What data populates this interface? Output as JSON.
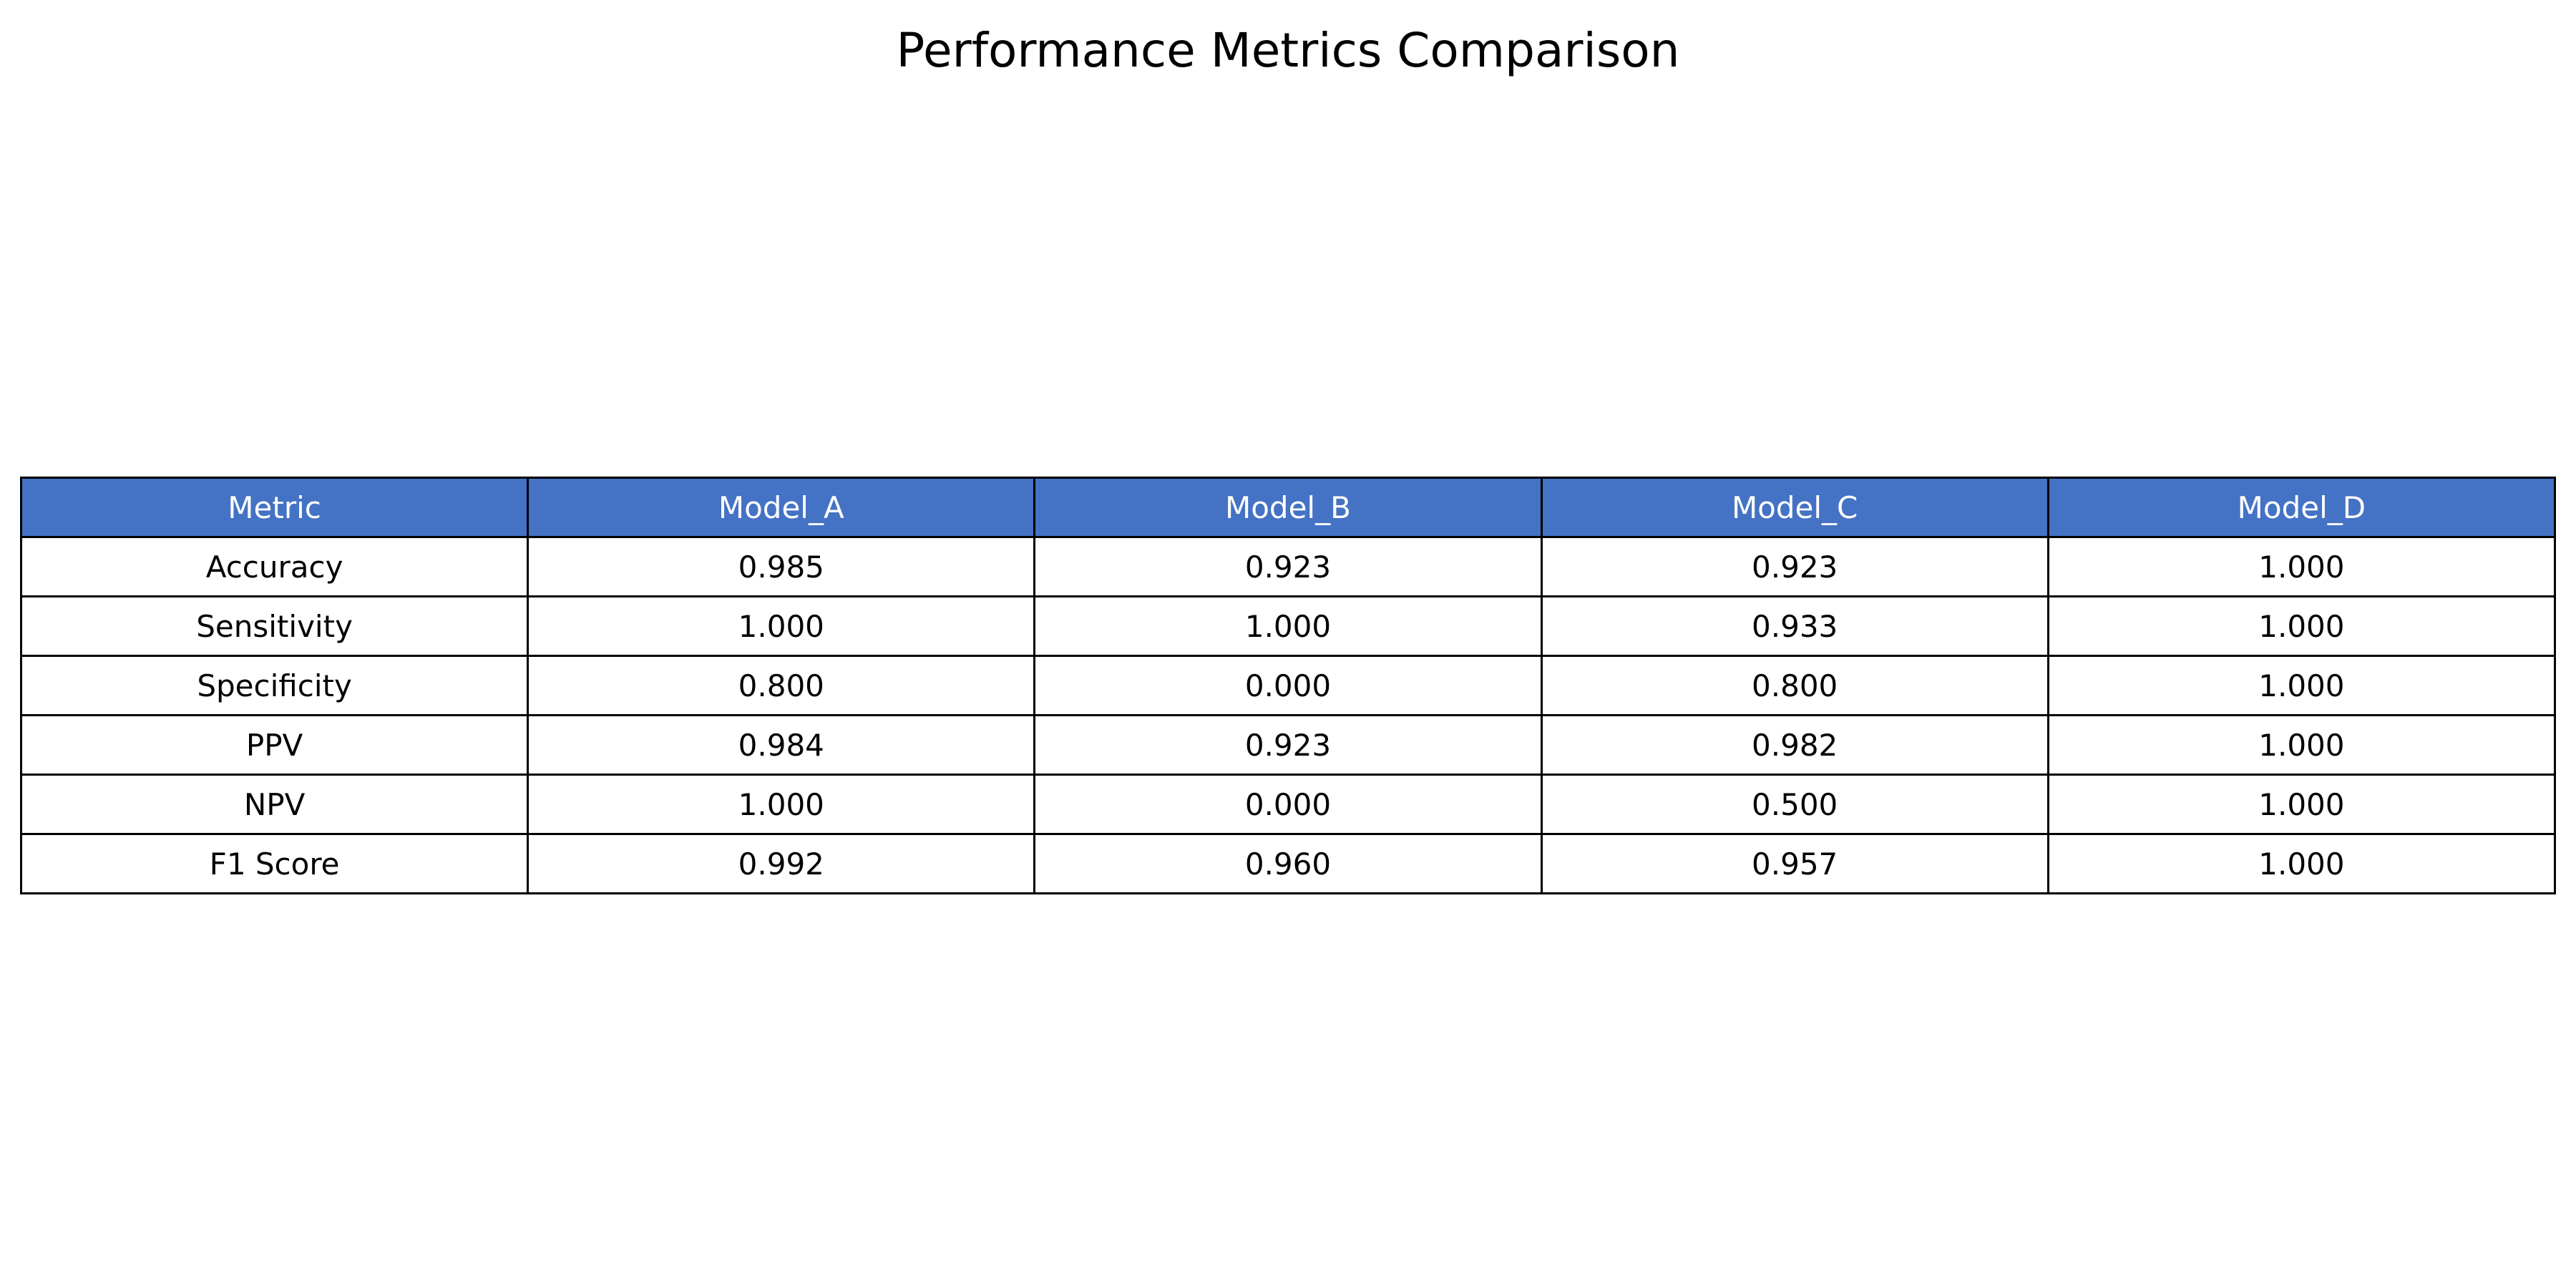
{
  "chart_data": {
    "type": "table",
    "title": "Performance Metrics Comparison",
    "header_color": "#4472C4",
    "header_text_color": "#ffffff",
    "columns": [
      "Metric",
      "Model_A",
      "Model_B",
      "Model_C",
      "Model_D"
    ],
    "rows": [
      [
        "Accuracy",
        "0.985",
        "0.923",
        "0.923",
        "1.000"
      ],
      [
        "Sensitivity",
        "1.000",
        "1.000",
        "0.933",
        "1.000"
      ],
      [
        "Specificity",
        "0.800",
        "0.000",
        "0.800",
        "1.000"
      ],
      [
        "PPV",
        "0.984",
        "0.923",
        "0.982",
        "1.000"
      ],
      [
        "NPV",
        "1.000",
        "0.000",
        "0.500",
        "1.000"
      ],
      [
        "F1 Score",
        "0.992",
        "0.960",
        "0.957",
        "1.000"
      ]
    ]
  }
}
